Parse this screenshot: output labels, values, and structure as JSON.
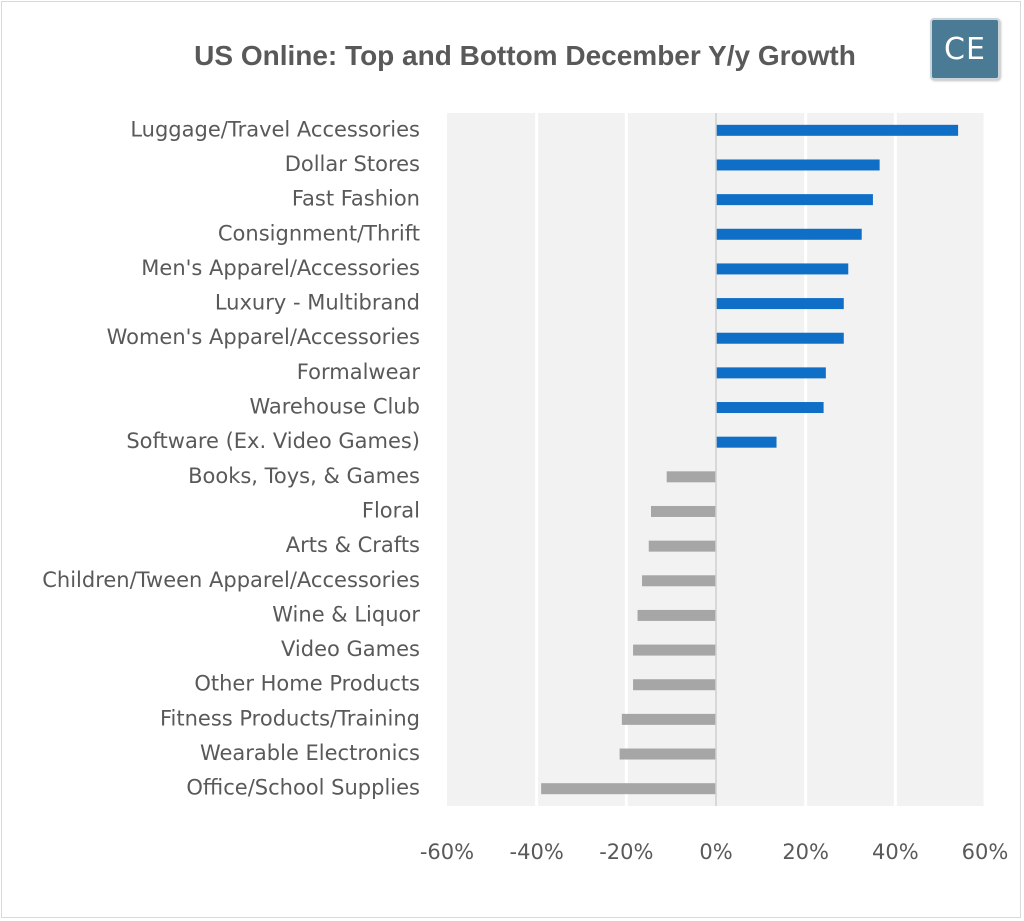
{
  "chart_data": {
    "type": "bar",
    "orientation": "horizontal",
    "title": "US Online:  Top and Bottom December Y/y Growth",
    "xlabel": "",
    "ylabel": "",
    "xlim": [
      -60,
      60
    ],
    "x_ticks": [
      -60,
      -40,
      -20,
      0,
      20,
      40,
      60
    ],
    "x_tick_labels": [
      "-60%",
      "-40%",
      "-20%",
      "0%",
      "20%",
      "40%",
      "60%"
    ],
    "grid": true,
    "legend": "none",
    "categories": [
      "Luggage/Travel Accessories",
      "Dollar Stores",
      "Fast Fashion",
      "Consignment/Thrift",
      "Men's Apparel/Accessories",
      "Luxury - Multibrand",
      "Women's Apparel/Accessories",
      "Formalwear",
      "Warehouse Club",
      "Software (Ex. Video Games)",
      "Books, Toys, & Games",
      "Floral",
      "Arts & Crafts",
      "Children/Tween Apparel/Accessories",
      "Wine & Liquor",
      "Video Games",
      "Other Home Products",
      "Fitness Products/Training",
      "Wearable Electronics",
      "Office/School Supplies"
    ],
    "values": [
      54,
      36.5,
      35,
      32.5,
      29.5,
      28.5,
      28.5,
      24.5,
      24,
      13.5,
      -11,
      -14.5,
      -15,
      -16.5,
      -17.5,
      -18.5,
      -18.5,
      -21,
      -21.5,
      -39
    ],
    "colors": {
      "positive": "#0f6fc6",
      "negative": "#a6a6a6",
      "plot_background": "#f2f2f2",
      "grid": "#ffffff"
    }
  },
  "logo": {
    "text": "CE"
  }
}
